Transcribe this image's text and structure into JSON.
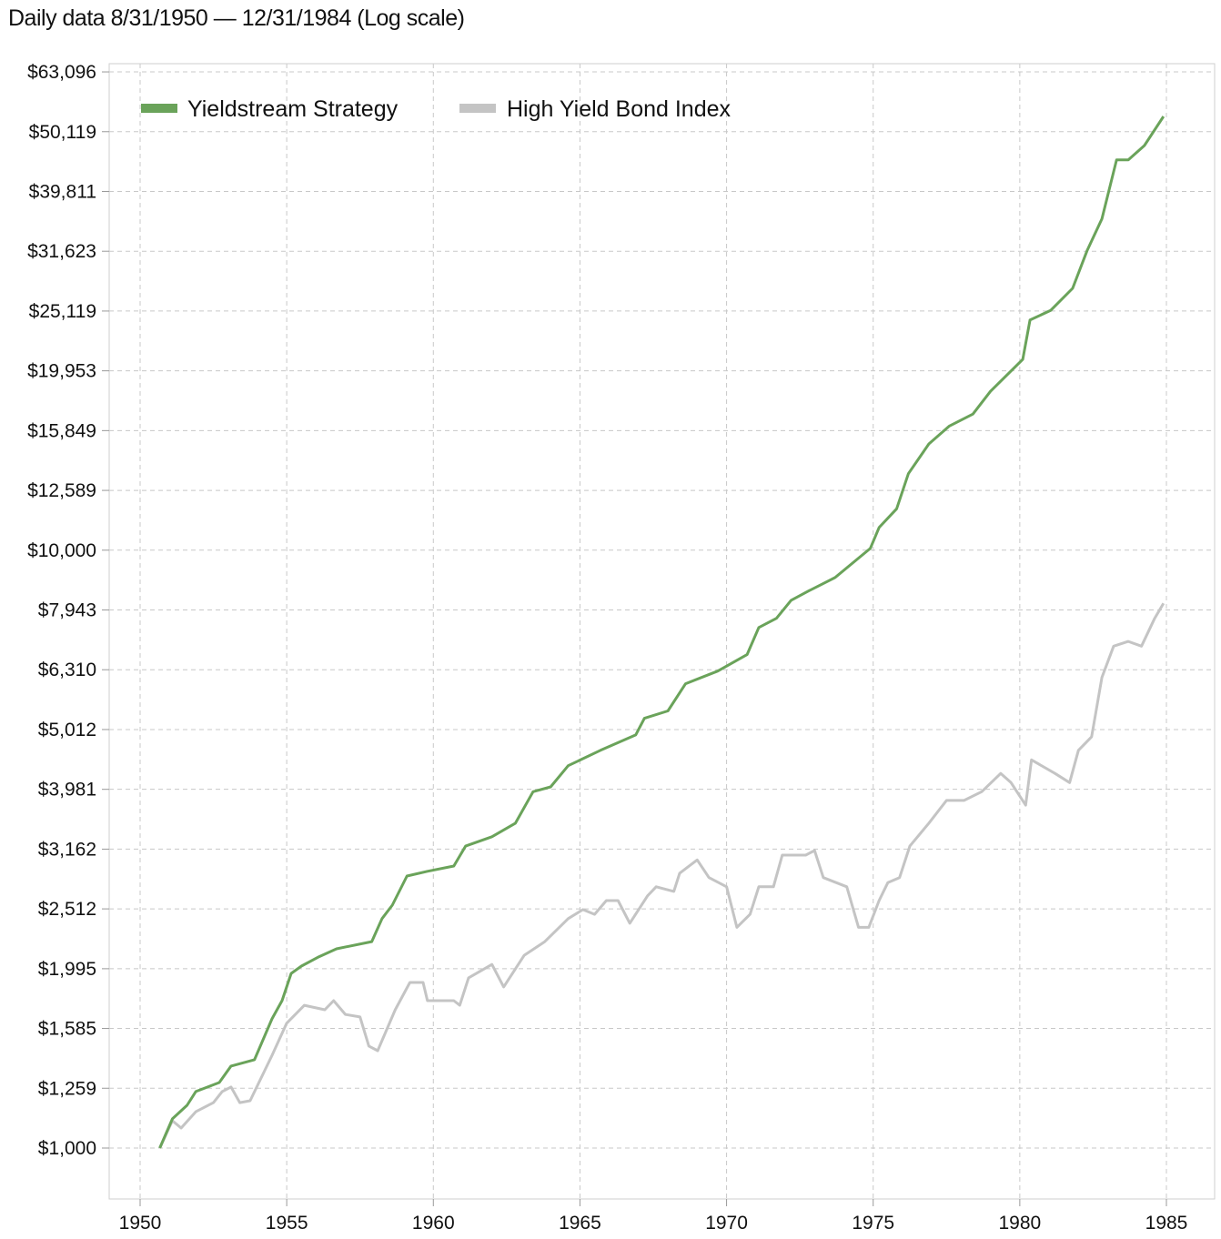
{
  "chart_data": {
    "type": "line",
    "title": "Daily data 8/31/1950 — 12/31/1984 (Log scale)",
    "xlabel": "",
    "ylabel": "",
    "y_scale": "log",
    "xlim": [
      1949,
      1986.6
    ],
    "ylim": [
      850,
      63096
    ],
    "grid": true,
    "legend_position": "top-left",
    "x_ticks": [
      1950,
      1955,
      1960,
      1965,
      1970,
      1975,
      1980,
      1985
    ],
    "x_tick_labels": [
      "1950",
      "1955",
      "1960",
      "1965",
      "1970",
      "1975",
      "1980",
      "1985"
    ],
    "y_ticks": [
      1000,
      1259,
      1585,
      1995,
      2512,
      3162,
      3981,
      5012,
      6310,
      7943,
      10000,
      12589,
      15849,
      19953,
      25119,
      31623,
      39811,
      50119,
      63096
    ],
    "y_tick_labels": [
      "$1,000",
      "$1,259",
      "$1,585",
      "$1,995",
      "$2,512",
      "$3,162",
      "$3,981",
      "$5,012",
      "$6,310",
      "$7,943",
      "$10,000",
      "$12,589",
      "$15,849",
      "$19,953",
      "$25,119",
      "$31,623",
      "$39,811",
      "$50,119",
      "$63,096"
    ],
    "series": [
      {
        "name": "Yieldstream Strategy",
        "color": "#6aa35a",
        "x": [
          1950.67,
          1951.1,
          1951.6,
          1951.9,
          1952.7,
          1953.1,
          1953.9,
          1954.5,
          1954.84,
          1955.15,
          1955.5,
          1956.1,
          1956.7,
          1957.9,
          1958.25,
          1958.6,
          1959.1,
          1959.8,
          1960.7,
          1961.1,
          1962.0,
          1962.8,
          1963.4,
          1964.0,
          1964.6,
          1965.7,
          1966.9,
          1967.2,
          1968.0,
          1968.6,
          1969.7,
          1970.7,
          1971.1,
          1971.7,
          1972.2,
          1972.8,
          1973.7,
          1974.9,
          1975.2,
          1975.8,
          1976.2,
          1976.9,
          1977.6,
          1978.4,
          1979.0,
          1980.1,
          1980.35,
          1981.05,
          1981.8,
          1982.3,
          1982.8,
          1983.3,
          1983.7,
          1984.25,
          1984.9
        ],
        "y": [
          1000,
          1119,
          1179,
          1243,
          1287,
          1371,
          1405,
          1645,
          1764,
          1959,
          2015,
          2089,
          2154,
          2214,
          2420,
          2548,
          2851,
          2903,
          2963,
          3199,
          3317,
          3494,
          3945,
          4019,
          4361,
          4627,
          4908,
          5234,
          5385,
          5980,
          6277,
          6688,
          7424,
          7693,
          8244,
          8547,
          8998,
          10066,
          10913,
          11727,
          13427,
          15055,
          16130,
          16889,
          18436,
          20852,
          24272,
          25171,
          27415,
          31749,
          35818,
          44956,
          44956,
          47509,
          53144
        ]
      },
      {
        "name": "High Yield Bond Index",
        "color": "#c4c4c4",
        "x": [
          1950.67,
          1951.1,
          1951.4,
          1951.9,
          1952.5,
          1952.8,
          1953.1,
          1953.4,
          1953.75,
          1954.2,
          1954.5,
          1955.0,
          1955.6,
          1956.3,
          1956.6,
          1957.0,
          1957.5,
          1957.8,
          1958.1,
          1958.7,
          1959.2,
          1959.65,
          1959.8,
          1960.7,
          1960.9,
          1961.2,
          1962.0,
          1962.4,
          1963.1,
          1963.8,
          1964.6,
          1965.1,
          1965.5,
          1965.9,
          1966.3,
          1966.7,
          1967.3,
          1967.6,
          1968.2,
          1968.4,
          1969.0,
          1969.4,
          1970.0,
          1970.35,
          1970.8,
          1971.1,
          1971.6,
          1971.9,
          1972.7,
          1973.0,
          1973.3,
          1974.1,
          1974.5,
          1974.85,
          1975.2,
          1975.5,
          1975.9,
          1976.25,
          1976.9,
          1977.5,
          1978.1,
          1978.7,
          1979.35,
          1979.7,
          1980.2,
          1980.4,
          1981.2,
          1981.7,
          1982.0,
          1982.45,
          1982.8,
          1983.2,
          1983.7,
          1984.15,
          1984.6,
          1984.9
        ],
        "y": [
          1000,
          1111,
          1080,
          1150,
          1191,
          1243,
          1265,
          1191,
          1200,
          1333,
          1429,
          1617,
          1733,
          1703,
          1764,
          1673,
          1657,
          1481,
          1455,
          1703,
          1892,
          1892,
          1764,
          1764,
          1733,
          1926,
          2028,
          1860,
          2101,
          2214,
          2420,
          2505,
          2460,
          2593,
          2593,
          2377,
          2640,
          2735,
          2687,
          2882,
          3033,
          2834,
          2735,
          2340,
          2460,
          2735,
          2735,
          3090,
          3090,
          3145,
          2834,
          2735,
          2340,
          2340,
          2593,
          2779,
          2834,
          3199,
          3494,
          3814,
          3814,
          3945,
          4232,
          4086,
          3746,
          4459,
          4232,
          4086,
          4627,
          4875,
          6125,
          6910,
          7036,
          6910,
          7693,
          8151
        ]
      }
    ]
  }
}
